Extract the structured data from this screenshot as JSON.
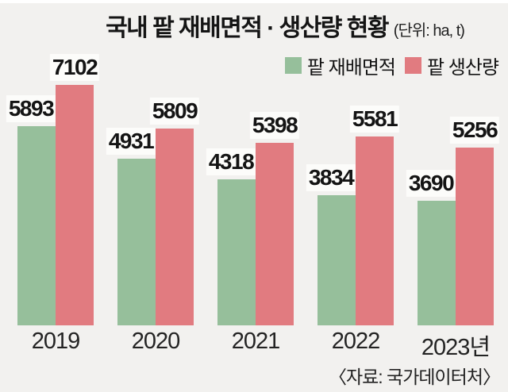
{
  "title": {
    "main": "국내 팥 재배면적 · 생산량 현황",
    "unit": "(단위: ha, t)"
  },
  "legend": [
    {
      "label": "팥 재배면적",
      "color": "#96bf9b"
    },
    {
      "label": "팥 생산량",
      "color": "#e17b80"
    }
  ],
  "source": "〈자료: 국가데이터처〉",
  "colors": {
    "background": "#f2f1ef",
    "text": "#141414",
    "label_halo": "#fcfcfa"
  },
  "chart_data": {
    "type": "bar",
    "title": "국내 팥 재배면적 · 생산량 현황",
    "unit_note": "(단위: ha, t)",
    "categories": [
      "2019",
      "2020",
      "2021",
      "2022",
      "2023년"
    ],
    "series": [
      {
        "name": "팥 재배면적",
        "color": "#96bf9b",
        "values": [
          5893,
          4931,
          4318,
          3834,
          3690
        ]
      },
      {
        "name": "팥 생산량",
        "color": "#e17b80",
        "values": [
          7102,
          5809,
          5398,
          5581,
          5256
        ]
      }
    ],
    "ylim": [
      0,
      7102
    ],
    "grid": false,
    "legend_position": "top-right",
    "value_labels": true,
    "source": "〈자료: 국가데이터처〉"
  }
}
